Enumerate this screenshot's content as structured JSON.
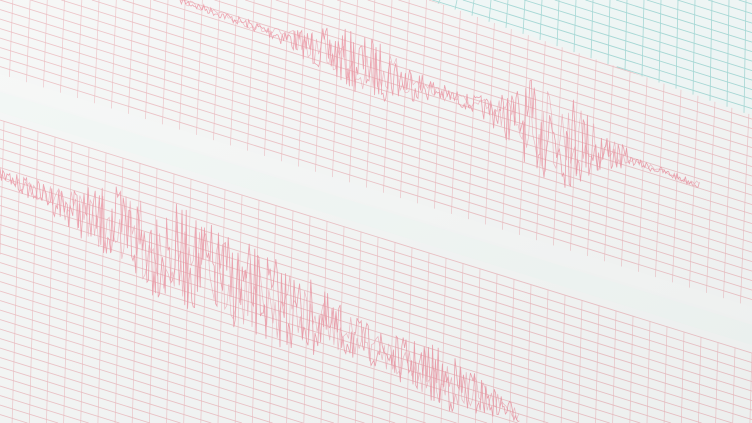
{
  "image": {
    "subject": "seismograph-paper",
    "colors": {
      "paper": "#f3f5f4",
      "gap_band": "#eef5f2",
      "grid_red": "#e7a7ad",
      "grid_teal": "#8fd0cc",
      "trace": "#e8788a"
    }
  }
}
